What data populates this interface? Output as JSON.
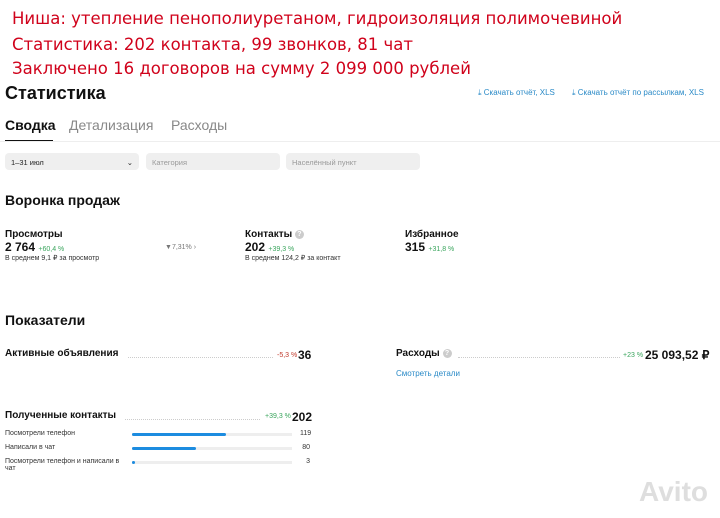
{
  "caption": [
    "Ниша: утепление пенополиуретаном, гидроизоляция полимочевиной",
    "Статистика: 202 контакта, 99 звонков, 81 чат",
    "Заключено 16 договоров на сумму 2 099 000 рублей"
  ],
  "title": "Статистика",
  "downloads": [
    "Скачать отчёт, XLS",
    "Скачать отчёт по рассылкам, XLS"
  ],
  "tabs": [
    "Сводка",
    "Детализация",
    "Расходы"
  ],
  "filters": {
    "period": "1–31 июл",
    "category": "Категория",
    "city": "Населённый пункт"
  },
  "funnel": {
    "title": "Воронка продаж",
    "views": {
      "label": "Просмотры",
      "value": "2 764",
      "change": "+60,4 %",
      "avg": "В среднем 9,1 ₽ за просмотр"
    },
    "conversion": "7,31%",
    "contacts": {
      "label": "Контакты",
      "value": "202",
      "change": "+39,3 %",
      "avg": "В среднем 124,2 ₽ за контакт"
    },
    "favorites": {
      "label": "Избранное",
      "value": "315",
      "change": "+31,8 %"
    }
  },
  "indicators": {
    "title": "Показатели",
    "active": {
      "label": "Активные объявления",
      "change": "-5,3 %",
      "value": "36"
    },
    "expenses": {
      "label": "Расходы",
      "change": "+23 %",
      "value": "25 093,52 ₽",
      "link": "Смотреть детали"
    },
    "contacts": {
      "label": "Полученные контакты",
      "change": "+39,3 %",
      "value": "202",
      "rows": [
        {
          "label": "Посмотрели телефон",
          "value": "119",
          "fraction": 0.59
        },
        {
          "label": "Написали в чат",
          "value": "80",
          "fraction": 0.4
        },
        {
          "label": "Посмотрели телефон и написали в чат",
          "value": "3",
          "fraction": 0.02
        }
      ]
    }
  },
  "watermark": "Avito"
}
